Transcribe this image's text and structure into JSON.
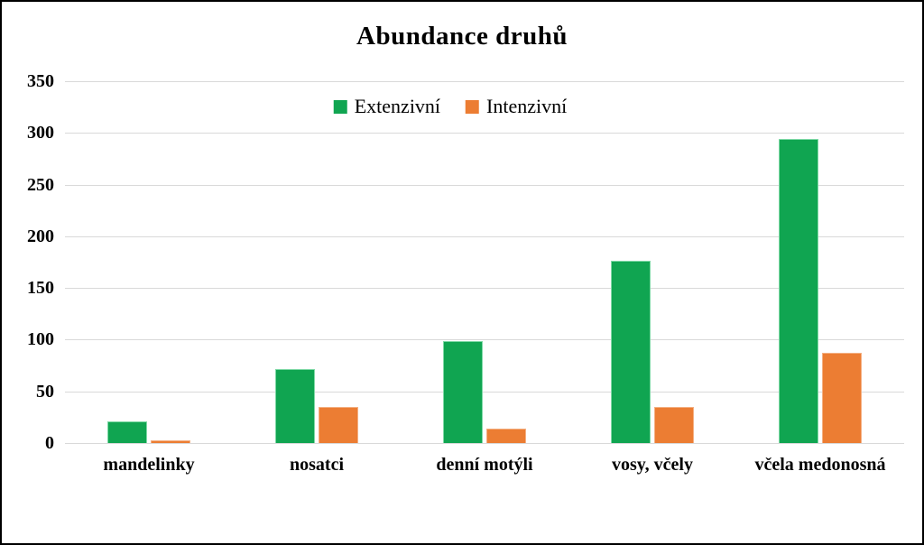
{
  "title": "Abundance druhů",
  "legend": {
    "items": [
      {
        "label": "Extenzivní",
        "color": "#10a551"
      },
      {
        "label": "Intenzivní",
        "color": "#ec7d33"
      }
    ]
  },
  "chart_data": {
    "type": "bar",
    "title": "Abundance druhů",
    "categories": [
      "mandelinky",
      "nosatci",
      "denní motýli",
      "vosy, včely",
      "včela medonosná"
    ],
    "series": [
      {
        "name": "Extenzivní",
        "color": "#10a551",
        "border_color": "#7fd9a6",
        "values": [
          21,
          72,
          99,
          176,
          294
        ]
      },
      {
        "name": "Intenzivní",
        "color": "#ec7d33",
        "border_color": "#f4b083",
        "values": [
          3,
          35,
          14,
          35,
          87
        ]
      }
    ],
    "xlabel": "",
    "ylabel": "",
    "ylim": [
      0,
      350
    ],
    "yticks": [
      0,
      50,
      100,
      150,
      200,
      250,
      300,
      350
    ],
    "grid": true,
    "legend_position": "top-center"
  },
  "colors": {
    "background": "#ffffff",
    "frame_border": "#000000",
    "gridline": "#d9d9d9",
    "text": "#000000"
  }
}
